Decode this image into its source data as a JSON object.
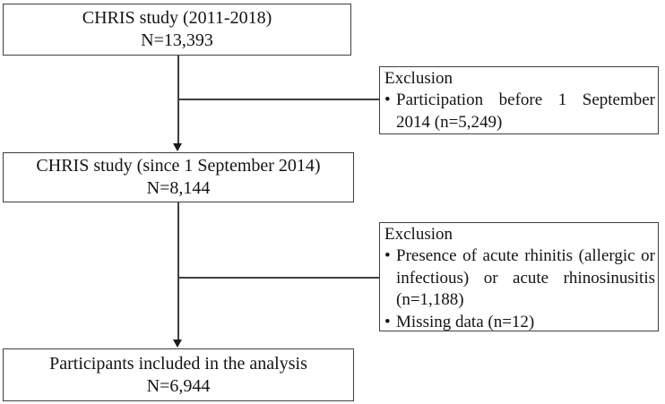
{
  "diagram": {
    "bullet_glyph": "•",
    "box_top": {
      "line1": "CHRIS study (2011-2018)",
      "line2": "N=13,393"
    },
    "exclusion_1": {
      "title": "Exclusion",
      "items": [
        "Participation before 1 September 2014 (n=5,249)"
      ]
    },
    "box_middle": {
      "line1": "CHRIS study (since 1 September 2014)",
      "line2": "N=8,144"
    },
    "exclusion_2": {
      "title": "Exclusion",
      "items": [
        "Presence of acute rhinitis (allergic or infectious) or acute rhinosinusitis (n=1,188)",
        "Missing data (n=12)"
      ]
    },
    "box_bottom": {
      "line1": "Participants included in the analysis",
      "line2": "N=6,944"
    },
    "colors": {
      "border": "#3f3f3f",
      "line": "#3f3f3f",
      "arrow": "#1a1a1a",
      "text": "#141414",
      "background": "#ffffff"
    }
  }
}
